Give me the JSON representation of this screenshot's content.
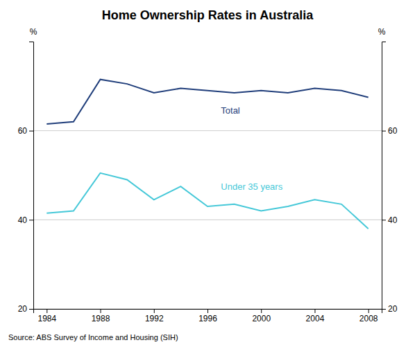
{
  "chart_data": {
    "type": "line",
    "title": "Home Ownership Rates in Australia",
    "source": "Source: ABS Survey of Income and Housing (SIH)",
    "ylabel": "%",
    "y2label": "%",
    "x": [
      1984,
      1986,
      1988,
      1990,
      1992,
      1994,
      1996,
      1998,
      2000,
      2002,
      2004,
      2006,
      2008
    ],
    "series": [
      {
        "color": "#1F3D7A",
        "values": [
          61.5,
          62.0,
          71.5,
          70.5,
          68.5,
          69.5,
          69.0,
          68.5,
          69.0,
          68.5,
          69.5,
          69.0,
          67.5
        ]
      },
      {
        "color": "#45C8D8",
        "values": [
          41.5,
          42.0,
          50.5,
          49.0,
          44.5,
          47.5,
          43.0,
          43.5,
          42.0,
          43.0,
          44.5,
          43.5,
          38.0
        ]
      }
    ],
    "annotations": [
      {
        "text": "Total",
        "x": 1997,
        "y": 64.5,
        "color": "#1F3D7A"
      },
      {
        "text": "Under 35 years",
        "x": 1997,
        "y": 47.5,
        "color": "#45C8D8"
      }
    ],
    "xlim": [
      1983,
      2009
    ],
    "xticks": [
      1984,
      1988,
      1992,
      1996,
      2000,
      2004,
      2008
    ],
    "ylim": [
      20,
      80
    ],
    "yticks": [
      20,
      40,
      60
    ],
    "y2lim": [
      20,
      80
    ],
    "y2ticks": [
      20,
      40,
      60
    ],
    "grid": true
  }
}
